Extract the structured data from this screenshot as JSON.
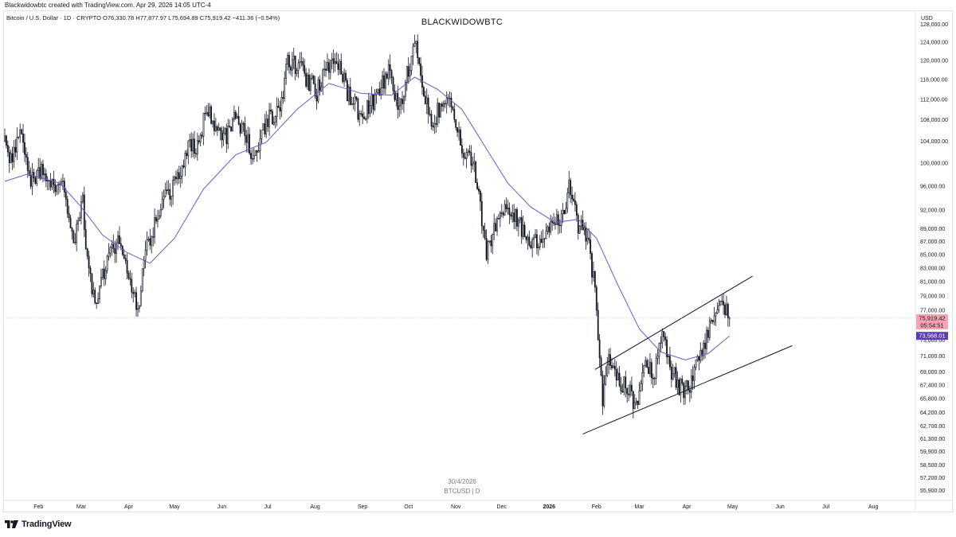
{
  "attribution": "Blackwidowbtc created with TradingView.com, Apr 29, 2026 14:05 UTC-4",
  "legend": "Bitcoin / U.S. Dollar · 1D · CRYPTO  O76,330.78  H77,877.97  L75,694.89  C75,919.42  −411.36 (−0.54%)",
  "watermark": "BLACKWIDOWBTC",
  "footer_date": "30/4/2026",
  "footer_symbol": "BTCUSD | D",
  "logo_text": "TradingView",
  "chart_data": {
    "type": "candlestick",
    "title": "BLACKWIDOWBTC",
    "currency": "USD",
    "log_scale": true,
    "grid": false,
    "ylim": [
      55000,
      131000
    ],
    "y_ticks": [
      {
        "v": 128000,
        "label": "128,000.00"
      },
      {
        "v": 124000,
        "label": "124,000.00"
      },
      {
        "v": 120000,
        "label": "120,000.00"
      },
      {
        "v": 116000,
        "label": "116,000.00"
      },
      {
        "v": 112000,
        "label": "112,000.00"
      },
      {
        "v": 108000,
        "label": "108,000.00"
      },
      {
        "v": 104000,
        "label": "104,000.00"
      },
      {
        "v": 100000,
        "label": "100,000.00"
      },
      {
        "v": 96000,
        "label": "96,000.00"
      },
      {
        "v": 92000,
        "label": "92,000.00"
      },
      {
        "v": 89000,
        "label": "89,000.00"
      },
      {
        "v": 87000,
        "label": "87,000.00"
      },
      {
        "v": 85000,
        "label": "85,000.00"
      },
      {
        "v": 83000,
        "label": "83,000.00"
      },
      {
        "v": 81000,
        "label": "81,000.00"
      },
      {
        "v": 79000,
        "label": "79,000.00"
      },
      {
        "v": 77000,
        "label": "77,000.00"
      },
      {
        "v": 73000,
        "label": "73,000.00"
      },
      {
        "v": 71000,
        "label": "71,000.00"
      },
      {
        "v": 69000,
        "label": "69,000.00"
      },
      {
        "v": 67400,
        "label": "67,400.00"
      },
      {
        "v": 65800,
        "label": "65,800.00"
      },
      {
        "v": 64200,
        "label": "64,200.00"
      },
      {
        "v": 62700,
        "label": "62,700.00"
      },
      {
        "v": 61300,
        "label": "61,300.00"
      },
      {
        "v": 59900,
        "label": "59,900.00"
      },
      {
        "v": 58500,
        "label": "58,500.00"
      },
      {
        "v": 57200,
        "label": "57,200.00"
      },
      {
        "v": 55900,
        "label": "55,900.00"
      }
    ],
    "x_ticks": [
      {
        "date": "2025-02-01",
        "label": "Feb"
      },
      {
        "date": "2025-03-01",
        "label": "Mar"
      },
      {
        "date": "2025-04-01",
        "label": "Apr"
      },
      {
        "date": "2025-05-01",
        "label": "May"
      },
      {
        "date": "2025-06-01",
        "label": "Jun"
      },
      {
        "date": "2025-07-01",
        "label": "Jul"
      },
      {
        "date": "2025-08-01",
        "label": "Aug"
      },
      {
        "date": "2025-09-01",
        "label": "Sep"
      },
      {
        "date": "2025-10-01",
        "label": "Oct"
      },
      {
        "date": "2025-11-01",
        "label": "Nov"
      },
      {
        "date": "2025-12-01",
        "label": "Dec"
      },
      {
        "date": "2026-01-01",
        "label": "2026",
        "bold": true
      },
      {
        "date": "2026-02-01",
        "label": "Feb"
      },
      {
        "date": "2026-03-01",
        "label": "Mar"
      },
      {
        "date": "2026-04-01",
        "label": "Apr"
      },
      {
        "date": "2026-05-01",
        "label": "May"
      },
      {
        "date": "2026-06-01",
        "label": "Jun"
      },
      {
        "date": "2026-07-01",
        "label": "Jul"
      },
      {
        "date": "2026-08-01",
        "label": "Aug"
      }
    ],
    "x_range": [
      "2025-01-10",
      "2026-08-28"
    ],
    "last_date": "2026-04-29",
    "price_path": [
      [
        "2025-01-10",
        104000
      ],
      [
        "2025-01-14",
        100000
      ],
      [
        "2025-01-20",
        105500
      ],
      [
        "2025-01-26",
        97000
      ],
      [
        "2025-02-03",
        99000
      ],
      [
        "2025-02-10",
        96500
      ],
      [
        "2025-02-18",
        96000
      ],
      [
        "2025-02-24",
        86500
      ],
      [
        "2025-03-02",
        93000
      ],
      [
        "2025-03-04",
        84500
      ],
      [
        "2025-03-10",
        78500
      ],
      [
        "2025-03-18",
        84000
      ],
      [
        "2025-03-26",
        87500
      ],
      [
        "2025-03-31",
        82500
      ],
      [
        "2025-04-07",
        77500
      ],
      [
        "2025-04-12",
        85000
      ],
      [
        "2025-04-22",
        93500
      ],
      [
        "2025-05-02",
        96500
      ],
      [
        "2025-05-10",
        103500
      ],
      [
        "2025-05-16",
        103000
      ],
      [
        "2025-05-22",
        110500
      ],
      [
        "2025-05-28",
        107000
      ],
      [
        "2025-06-04",
        104500
      ],
      [
        "2025-06-10",
        109500
      ],
      [
        "2025-06-17",
        104500
      ],
      [
        "2025-06-22",
        100500
      ],
      [
        "2025-06-30",
        107500
      ],
      [
        "2025-07-09",
        110000
      ],
      [
        "2025-07-14",
        120000
      ],
      [
        "2025-07-22",
        118500
      ],
      [
        "2025-08-02",
        113500
      ],
      [
        "2025-08-14",
        121500
      ],
      [
        "2025-08-22",
        113500
      ],
      [
        "2025-08-31",
        108500
      ],
      [
        "2025-09-08",
        111500
      ],
      [
        "2025-09-18",
        117500
      ],
      [
        "2025-09-25",
        109500
      ],
      [
        "2025-10-02",
        120000
      ],
      [
        "2025-10-06",
        124500
      ],
      [
        "2025-10-11",
        112500
      ],
      [
        "2025-10-16",
        108000
      ],
      [
        "2025-10-22",
        110000
      ],
      [
        "2025-10-28",
        113500
      ],
      [
        "2025-11-04",
        103500
      ],
      [
        "2025-11-13",
        99500
      ],
      [
        "2025-11-21",
        85000
      ],
      [
        "2025-11-26",
        89500
      ],
      [
        "2025-12-03",
        92500
      ],
      [
        "2025-12-10",
        91500
      ],
      [
        "2025-12-18",
        86500
      ],
      [
        "2025-12-26",
        87500
      ],
      [
        "2026-01-02",
        89000
      ],
      [
        "2026-01-10",
        90500
      ],
      [
        "2026-01-14",
        96500
      ],
      [
        "2026-01-20",
        89500
      ],
      [
        "2026-01-26",
        87500
      ],
      [
        "2026-01-31",
        80000
      ],
      [
        "2026-02-05",
        66000
      ],
      [
        "2026-02-09",
        70500
      ],
      [
        "2026-02-15",
        68000
      ],
      [
        "2026-02-22",
        67000
      ],
      [
        "2026-02-28",
        64500
      ],
      [
        "2026-03-05",
        70500
      ],
      [
        "2026-03-10",
        68500
      ],
      [
        "2026-03-16",
        73500
      ],
      [
        "2026-03-22",
        69000
      ],
      [
        "2026-03-30",
        66500
      ],
      [
        "2026-04-05",
        68000
      ],
      [
        "2026-04-10",
        71500
      ],
      [
        "2026-04-17",
        75500
      ],
      [
        "2026-04-23",
        78000
      ],
      [
        "2026-04-29",
        75919.42
      ]
    ],
    "moving_average": [
      [
        "2025-01-10",
        96800
      ],
      [
        "2025-01-25",
        98100
      ],
      [
        "2025-02-15",
        96500
      ],
      [
        "2025-03-01",
        92500
      ],
      [
        "2025-03-15",
        88000
      ],
      [
        "2025-03-31",
        85300
      ],
      [
        "2025-04-15",
        83700
      ],
      [
        "2025-05-01",
        87500
      ],
      [
        "2025-05-20",
        95500
      ],
      [
        "2025-06-10",
        101500
      ],
      [
        "2025-06-30",
        103800
      ],
      [
        "2025-07-20",
        110000
      ],
      [
        "2025-08-10",
        115200
      ],
      [
        "2025-08-31",
        113200
      ],
      [
        "2025-09-20",
        112800
      ],
      [
        "2025-10-05",
        116500
      ],
      [
        "2025-10-20",
        114000
      ],
      [
        "2025-11-05",
        110000
      ],
      [
        "2025-11-20",
        103000
      ],
      [
        "2025-12-05",
        96500
      ],
      [
        "2025-12-20",
        92500
      ],
      [
        "2026-01-05",
        90000
      ],
      [
        "2026-01-20",
        90500
      ],
      [
        "2026-02-01",
        87500
      ],
      [
        "2026-02-15",
        80500
      ],
      [
        "2026-03-01",
        74500
      ],
      [
        "2026-03-15",
        71500
      ],
      [
        "2026-03-31",
        70500
      ],
      [
        "2026-04-15",
        71300
      ],
      [
        "2026-04-29",
        73568.01
      ]
    ],
    "trendlines": [
      {
        "name": "channel-upper",
        "from": [
          "2026-01-31",
          69300
        ],
        "to": [
          "2026-05-14",
          81800
        ]
      },
      {
        "name": "channel-lower",
        "from": [
          "2026-01-23",
          61800
        ],
        "to": [
          "2026-06-09",
          72300
        ]
      }
    ],
    "last_price": {
      "value": 75919.42,
      "label": "75,919.42",
      "countdown": "05:54:51",
      "color": "#f7a3b3"
    },
    "ma_value": {
      "value": 73568.01,
      "label": "73,568.01",
      "color": "#5a3cb3"
    },
    "ma_color": "#6a5acd",
    "candle_color": "#131722"
  }
}
